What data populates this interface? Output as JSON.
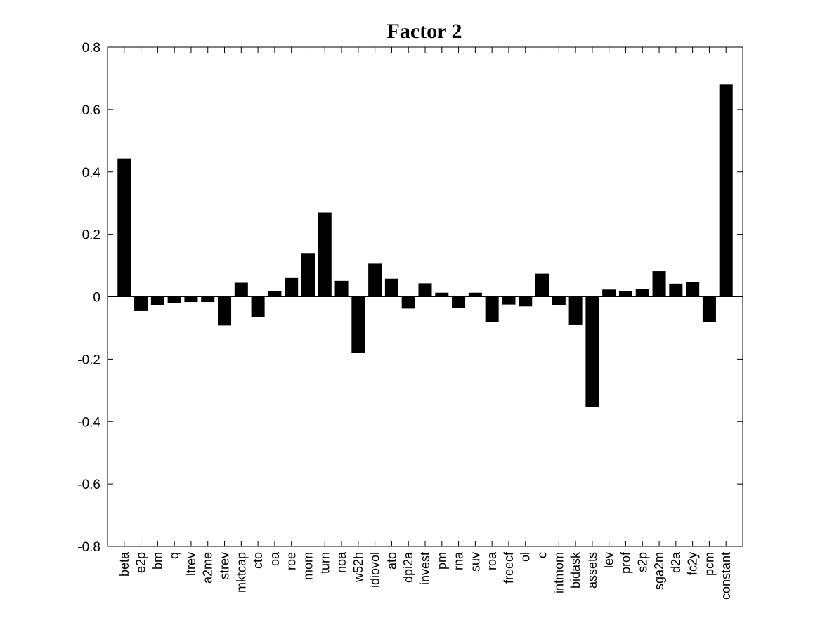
{
  "chart_data": {
    "type": "bar",
    "title": "Factor 2",
    "xlabel": "",
    "ylabel": "",
    "ylim": [
      -0.8,
      0.8
    ],
    "yticks": [
      0.8,
      0.6,
      0.4,
      0.2,
      0,
      -0.2,
      -0.4,
      -0.6,
      -0.8
    ],
    "ytick_labels": [
      "0.8",
      "0.6",
      "0.4",
      "0.2",
      "0",
      "-0.2",
      "-0.4",
      "-0.6",
      "-0.8"
    ],
    "grid": false,
    "bar_color": "#000000",
    "categories": [
      "beta",
      "e2p",
      "bm",
      "q",
      "ltrev",
      "a2me",
      "strev",
      "mktcap",
      "cto",
      "oa",
      "roe",
      "mom",
      "turn",
      "noa",
      "w52h",
      "idiovol",
      "ato",
      "dpi2a",
      "invest",
      "pm",
      "rna",
      "suv",
      "roa",
      "freecf",
      "ol",
      "c",
      "intmom",
      "bidask",
      "assets",
      "lev",
      "prof",
      "s2p",
      "sga2m",
      "d2a",
      "fc2y",
      "pcm",
      "constant"
    ],
    "values": [
      0.443,
      -0.046,
      -0.027,
      -0.021,
      -0.017,
      -0.017,
      -0.092,
      0.045,
      -0.066,
      0.017,
      0.06,
      0.14,
      0.27,
      0.051,
      -0.181,
      0.106,
      0.058,
      -0.038,
      0.043,
      0.013,
      -0.036,
      0.013,
      -0.081,
      -0.025,
      -0.031,
      0.074,
      -0.028,
      -0.091,
      -0.354,
      0.023,
      0.019,
      0.025,
      0.082,
      0.042,
      0.048,
      -0.081,
      0.68
    ]
  }
}
